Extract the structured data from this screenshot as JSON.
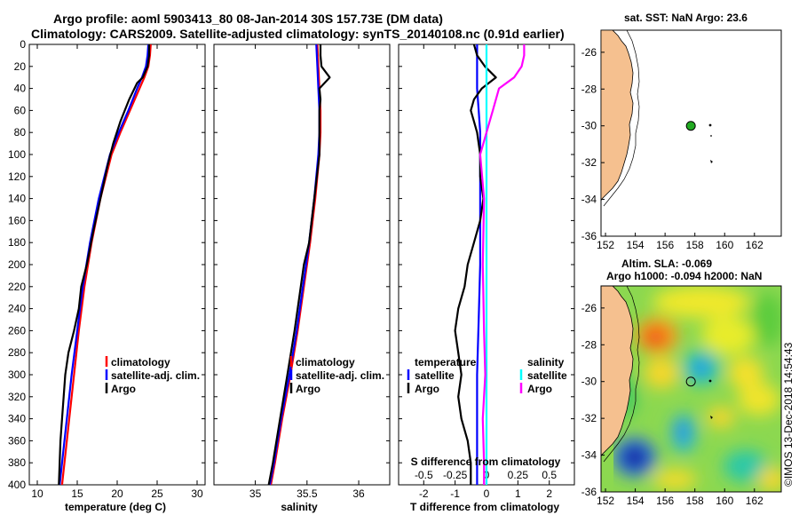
{
  "figure": {
    "title_line1": "Argo profile: aoml 5903413_80 08-Jan-2014 30S 157.73E (DM data)",
    "title_line2": "Climatology: CARS2009. Satellite-adjusted climatology: synTS_20140108.nc (0.91d earlier)",
    "credit": "©IMOS 13-Dec-2018 14:54:43"
  },
  "colors": {
    "climatology": "#ff0000",
    "satellite": "#0000ff",
    "argo": "#000000",
    "sat_salinity": "#00ffff",
    "argo_salinity": "#ff00ff",
    "land": "#f5c08f"
  },
  "chart_data": [
    {
      "id": "temperature",
      "type": "line",
      "xlabel": "temperature (deg C)",
      "ylabel": "",
      "xlim": [
        9,
        31
      ],
      "ylim": [
        400,
        0
      ],
      "xticks": [
        "10",
        "15",
        "20",
        "25",
        "30"
      ],
      "xtick_values": [
        10,
        15,
        20,
        25,
        30
      ],
      "yticks": [
        "0",
        "20",
        "40",
        "60",
        "80",
        "100",
        "120",
        "140",
        "160",
        "180",
        "200",
        "220",
        "240",
        "260",
        "280",
        "300",
        "320",
        "340",
        "360",
        "380",
        "400"
      ],
      "ytick_values": [
        0,
        20,
        40,
        60,
        80,
        100,
        120,
        140,
        160,
        180,
        200,
        220,
        240,
        260,
        280,
        300,
        320,
        340,
        360,
        380,
        400
      ],
      "legend": [
        "climatology",
        "satellite-adj. clim.",
        "Argo"
      ],
      "series": [
        {
          "name": "climatology",
          "color": "#ff0000",
          "depth": [
            0,
            10,
            20,
            30,
            40,
            60,
            80,
            100,
            140,
            180,
            220,
            260,
            300,
            340,
            380,
            400
          ],
          "values": [
            24.2,
            24.1,
            23.9,
            23.4,
            22.8,
            21.6,
            20.4,
            19.3,
            17.9,
            16.8,
            15.9,
            15.2,
            14.6,
            14.0,
            13.4,
            13.1
          ]
        },
        {
          "name": "satellite-adj. clim.",
          "color": "#0000ff",
          "depth": [
            0,
            10,
            20,
            30,
            40,
            60,
            80,
            100,
            140,
            180,
            220,
            260,
            300,
            340,
            380,
            400
          ],
          "values": [
            23.9,
            23.8,
            23.6,
            23.1,
            22.5,
            21.4,
            20.2,
            19.1,
            17.7,
            16.6,
            15.7,
            15.0,
            14.3,
            13.7,
            13.1,
            12.8
          ]
        },
        {
          "name": "Argo",
          "color": "#000000",
          "depth": [
            0,
            10,
            20,
            30,
            35,
            50,
            70,
            90,
            110,
            140,
            170,
            200,
            220,
            240,
            260,
            280,
            300,
            320,
            340,
            360,
            380,
            400
          ],
          "values": [
            24.0,
            24.0,
            23.8,
            23.2,
            22.5,
            21.5,
            20.4,
            19.5,
            18.8,
            17.9,
            17.0,
            16.2,
            15.5,
            15.2,
            14.6,
            13.9,
            13.5,
            13.3,
            13.1,
            12.9,
            12.8,
            12.7
          ]
        }
      ]
    },
    {
      "id": "salinity",
      "type": "line",
      "xlabel": "salinity",
      "ylabel": "",
      "xlim": [
        34.6,
        36.3
      ],
      "ylim": [
        400,
        0
      ],
      "xticks": [
        "35",
        "35.5",
        "36"
      ],
      "xtick_values": [
        35,
        35.5,
        36
      ],
      "legend": [
        "climatology",
        "satellite-adj. clim.",
        "Argo"
      ],
      "series": [
        {
          "name": "climatology",
          "color": "#ff0000",
          "depth": [
            0,
            20,
            40,
            60,
            80,
            100,
            140,
            180,
            220,
            260,
            300,
            340,
            380,
            400
          ],
          "values": [
            35.6,
            35.61,
            35.62,
            35.63,
            35.63,
            35.62,
            35.58,
            35.53,
            35.47,
            35.41,
            35.34,
            35.26,
            35.19,
            35.15
          ]
        },
        {
          "name": "satellite-adj. clim.",
          "color": "#0000ff",
          "depth": [
            0,
            20,
            40,
            60,
            80,
            100,
            140,
            180,
            220,
            260,
            300,
            340,
            380,
            400
          ],
          "values": [
            35.59,
            35.6,
            35.61,
            35.62,
            35.62,
            35.61,
            35.57,
            35.52,
            35.46,
            35.4,
            35.33,
            35.25,
            35.18,
            35.14
          ]
        },
        {
          "name": "Argo",
          "color": "#000000",
          "depth": [
            0,
            10,
            20,
            30,
            40,
            50,
            60,
            80,
            100,
            140,
            180,
            200,
            220,
            260,
            300,
            340,
            380,
            400
          ],
          "values": [
            35.63,
            35.63,
            35.64,
            35.72,
            35.62,
            35.63,
            35.62,
            35.62,
            35.62,
            35.57,
            35.52,
            35.47,
            35.44,
            35.38,
            35.31,
            35.24,
            35.17,
            35.13
          ]
        }
      ]
    },
    {
      "id": "difference",
      "type": "line",
      "xlabel": "T difference from climatology",
      "xlabel_top": "S difference from climatology",
      "xlim": [
        -2.8,
        2.8
      ],
      "ylim": [
        400,
        0
      ],
      "xticks": [
        "-2",
        "-1",
        "0",
        "1",
        "2"
      ],
      "xtick_values": [
        -2,
        -1,
        0,
        1,
        2
      ],
      "xticks_S": [
        "-0.5",
        "-0.25",
        "0",
        "0.25",
        "0.5"
      ],
      "xtick_values_S": [
        -0.5,
        -0.25,
        0,
        0.25,
        0.5
      ],
      "legend_temperature_title": "temperature",
      "legend_salinity_title": "salinity",
      "legend": [
        "satellite",
        "Argo",
        "satellite",
        "Argo"
      ],
      "series": [
        {
          "name": "T satellite",
          "color": "#0000ff",
          "depth": [
            0,
            20,
            40,
            60,
            80,
            100,
            150,
            200,
            250,
            300,
            350,
            400
          ],
          "values": [
            -0.3,
            -0.3,
            -0.3,
            -0.25,
            -0.2,
            -0.2,
            -0.2,
            -0.2,
            -0.25,
            -0.3,
            -0.3,
            -0.3
          ]
        },
        {
          "name": "T Argo",
          "color": "#000000",
          "depth": [
            0,
            10,
            20,
            30,
            40,
            50,
            60,
            70,
            80,
            100,
            120,
            140,
            160,
            180,
            200,
            220,
            240,
            260,
            280,
            300,
            320,
            340,
            360,
            380,
            400
          ],
          "values": [
            -0.4,
            -0.3,
            -0.05,
            0.3,
            -0.15,
            -0.4,
            -0.5,
            -0.4,
            -0.3,
            -0.2,
            -0.2,
            -0.1,
            -0.2,
            -0.4,
            -0.6,
            -0.7,
            -0.9,
            -1.0,
            -0.9,
            -0.8,
            -0.9,
            -0.8,
            -0.6,
            -0.5,
            -0.5
          ]
        },
        {
          "name": "S satellite",
          "color": "#00ffff",
          "depth": [
            0,
            20,
            40,
            80,
            120,
            200,
            280,
            340,
            400
          ],
          "values": [
            0.0,
            0.0,
            0.0,
            0.0,
            0.0,
            0.0,
            0.0,
            0.0,
            0.0
          ]
        },
        {
          "name": "S Argo",
          "color": "#ff00ff",
          "depth": [
            0,
            10,
            20,
            30,
            40,
            60,
            80,
            100,
            140,
            200,
            260,
            300,
            340,
            380,
            400
          ],
          "values": [
            0.3,
            0.3,
            0.28,
            0.22,
            0.1,
            0.05,
            0.0,
            -0.05,
            -0.02,
            -0.03,
            -0.02,
            -0.01,
            -0.03,
            -0.02,
            -0.02
          ]
        }
      ]
    }
  ],
  "map_sst": {
    "title": "sat. SST: NaN Argo: 23.6",
    "xticks": [
      "152",
      "154",
      "156",
      "158",
      "160",
      "162"
    ],
    "xtick_values": [
      152,
      154,
      156,
      158,
      160,
      162
    ],
    "yticks": [
      "-26",
      "-28",
      "-30",
      "-32",
      "-34",
      "-36"
    ],
    "ytick_values": [
      -26,
      -28,
      -30,
      -32,
      -34,
      -36
    ],
    "lon_range": [
      151.7,
      163.8
    ],
    "lat_range": [
      -36,
      -24.8
    ],
    "float_lon": 157.73,
    "float_lat": -30.0
  },
  "map_sla": {
    "title_line1": "Altim. SLA: -0.069",
    "title_line2": "Argo h1000: -0.094 h2000: NaN",
    "xticks": [
      "152",
      "154",
      "156",
      "158",
      "160",
      "162"
    ],
    "xtick_values": [
      152,
      154,
      156,
      158,
      160,
      162
    ],
    "yticks": [
      "-26",
      "-28",
      "-30",
      "-32",
      "-34",
      "-36"
    ],
    "ytick_values": [
      -26,
      -28,
      -30,
      -32,
      -34,
      -36
    ],
    "lon_range": [
      151.7,
      163.8
    ],
    "lat_range": [
      -36,
      -24.8
    ],
    "float_lon": 157.73,
    "float_lat": -30.0
  }
}
